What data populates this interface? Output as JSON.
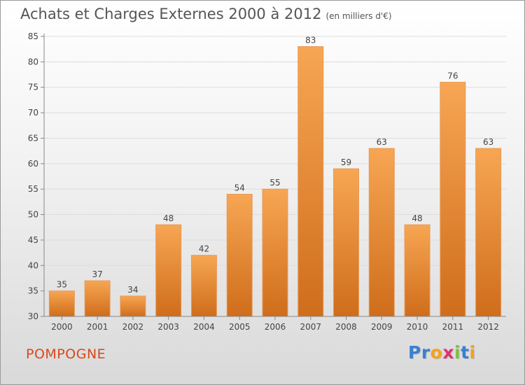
{
  "header": {
    "title": "Achats et Charges Externes 2000 à 2012",
    "subtitle": "(en milliers d'€)"
  },
  "footer": {
    "commune": "POMPOGNE",
    "brand_letters": [
      "P",
      "r",
      "o",
      "x",
      "i",
      "t",
      "i"
    ],
    "brand_colors": [
      "#3a7fd5",
      "#3a7fd5",
      "#f4a21c",
      "#e1316d",
      "#7cc242",
      "#3a7fd5",
      "#f4a21c"
    ]
  },
  "colors": {
    "bar_top": "#f7a653",
    "bar_bottom": "#cf6d1b",
    "axis": "#888888",
    "grid": "#dddddd",
    "text": "#444444",
    "commune": "#d9481a"
  },
  "chart_data": {
    "type": "bar",
    "title": "Achats et Charges Externes 2000 à 2012",
    "subtitle": "(en milliers d'€)",
    "xlabel": "",
    "ylabel": "",
    "categories": [
      "2000",
      "2001",
      "2002",
      "2003",
      "2004",
      "2005",
      "2006",
      "2007",
      "2008",
      "2009",
      "2010",
      "2011",
      "2012"
    ],
    "values": [
      35,
      37,
      34,
      48,
      42,
      54,
      55,
      83,
      59,
      63,
      48,
      76,
      63
    ],
    "ylim": [
      30,
      85
    ],
    "yticks": [
      30,
      35,
      40,
      45,
      50,
      55,
      60,
      65,
      70,
      75,
      80,
      85
    ],
    "grid": true,
    "legend": "none"
  }
}
